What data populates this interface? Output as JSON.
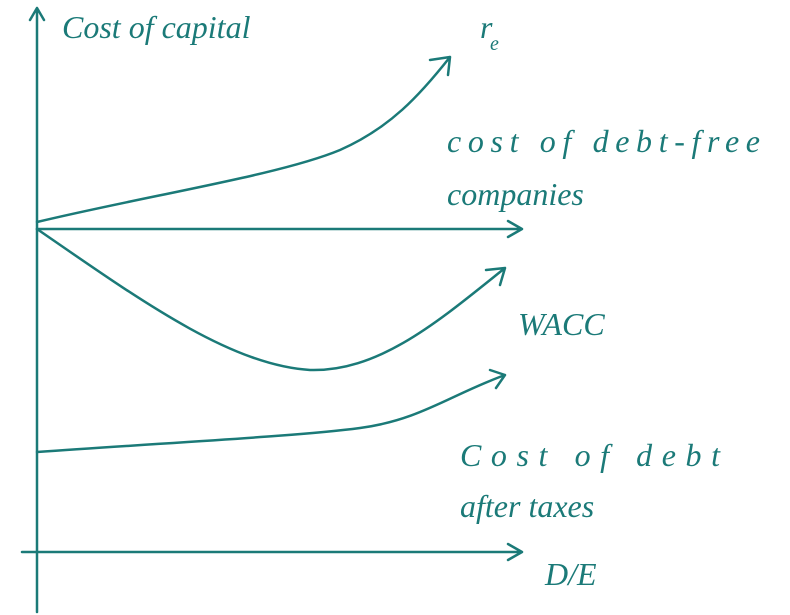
{
  "axes": {
    "y_label": "Cost of capital",
    "x_label": "D/E"
  },
  "curves": [
    {
      "label": "r",
      "subscript": "e"
    },
    {
      "label_lines": [
        "cost of debt-free",
        "companies"
      ]
    },
    {
      "label": "WACC"
    },
    {
      "label_lines": [
        "Cost of debt",
        "after taxes"
      ]
    }
  ]
}
